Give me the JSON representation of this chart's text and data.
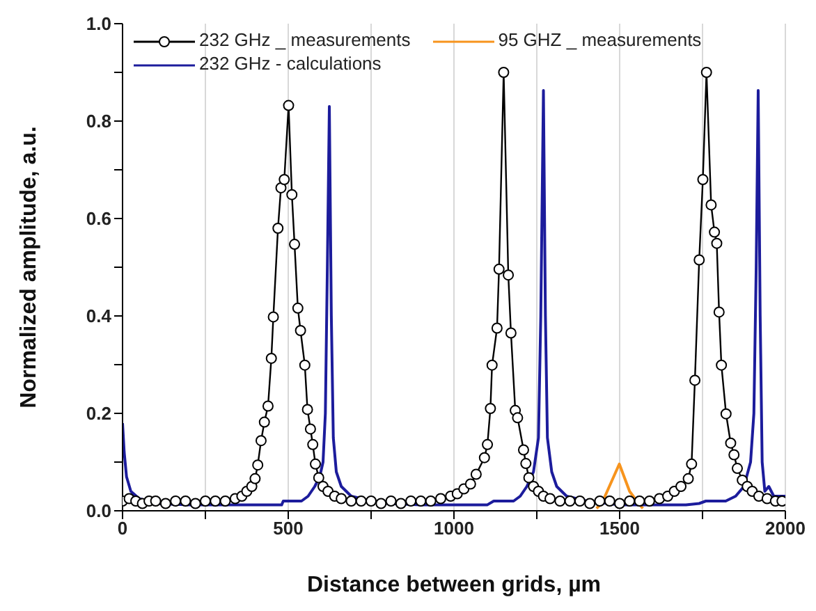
{
  "chart_data": {
    "type": "line",
    "xlabel": "Distance between grids, µm",
    "ylabel": "Normalized amplitude, a.u.",
    "xlim": [
      0,
      2000
    ],
    "xticks": [
      0,
      {
        "value": 250,
        "label": null
      },
      500,
      {
        "value": 750,
        "label": null
      },
      1000,
      {
        "value": 1250,
        "label": null
      },
      1500,
      {
        "value": 1750,
        "label": null
      },
      2000
    ],
    "ylim": [
      0,
      1
    ],
    "yticks": [
      {
        "value": 0,
        "label": "0.0"
      },
      {
        "value": 0.1,
        "label": null
      },
      {
        "value": 0.2,
        "label": "0.2"
      },
      {
        "value": 0.3,
        "label": null
      },
      {
        "value": 0.4,
        "label": "0.4"
      },
      {
        "value": 0.5,
        "label": null
      },
      {
        "value": 0.6,
        "label": "0.6"
      },
      {
        "value": 0.7,
        "label": null
      },
      {
        "value": 0.8,
        "label": "0.8"
      },
      {
        "value": 0.9,
        "label": null
      },
      {
        "value": 1,
        "label": "1.0"
      }
    ],
    "grid": "x",
    "legend": "top left",
    "line_style": "solid",
    "series": [
      {
        "name": "232 GHz _ measurements",
        "color": "#000000",
        "marker": "circle",
        "x": [
          0,
          20,
          40,
          60,
          80,
          100,
          130,
          160,
          190,
          220,
          250,
          280,
          310,
          340,
          360,
          375,
          390,
          400,
          408,
          418,
          428,
          439,
          449,
          455,
          469,
          478,
          488,
          501,
          511,
          519,
          529,
          537,
          550,
          558,
          567,
          574,
          582,
          592,
          605,
          620,
          640,
          660,
          690,
          720,
          750,
          780,
          810,
          840,
          870,
          900,
          930,
          960,
          990,
          1010,
          1030,
          1050,
          1067,
          1092,
          1101,
          1110,
          1115,
          1130,
          1136,
          1150,
          1164,
          1172,
          1185,
          1192,
          1210,
          1217,
          1226,
          1240,
          1255,
          1270,
          1290,
          1320,
          1350,
          1380,
          1410,
          1440,
          1470,
          1500,
          1530,
          1560,
          1590,
          1620,
          1645,
          1665,
          1685,
          1707,
          1717,
          1727,
          1740,
          1751,
          1762,
          1776,
          1786,
          1793,
          1800,
          1807,
          1821,
          1835,
          1845,
          1855,
          1870,
          1885,
          1900,
          1920,
          1945,
          1970,
          1990
        ],
        "values": [
          0.02,
          0.025,
          0.02,
          0.015,
          0.02,
          0.02,
          0.015,
          0.02,
          0.02,
          0.015,
          0.02,
          0.02,
          0.02,
          0.025,
          0.03,
          0.04,
          0.05,
          0.066,
          0.094,
          0.144,
          0.182,
          0.215,
          0.313,
          0.398,
          0.58,
          0.663,
          0.68,
          0.832,
          0.649,
          0.547,
          0.416,
          0.37,
          0.299,
          0.208,
          0.168,
          0.136,
          0.096,
          0.068,
          0.05,
          0.04,
          0.03,
          0.025,
          0.02,
          0.02,
          0.02,
          0.015,
          0.02,
          0.015,
          0.02,
          0.02,
          0.02,
          0.025,
          0.03,
          0.035,
          0.045,
          0.055,
          0.075,
          0.109,
          0.136,
          0.21,
          0.299,
          0.375,
          0.496,
          0.9,
          0.484,
          0.365,
          0.206,
          0.191,
          0.125,
          0.097,
          0.068,
          0.05,
          0.04,
          0.03,
          0.025,
          0.02,
          0.02,
          0.02,
          0.015,
          0.02,
          0.02,
          0.015,
          0.02,
          0.02,
          0.02,
          0.025,
          0.03,
          0.04,
          0.05,
          0.066,
          0.096,
          0.268,
          0.515,
          0.68,
          0.9,
          0.628,
          0.572,
          0.549,
          0.408,
          0.299,
          0.199,
          0.139,
          0.115,
          0.087,
          0.063,
          0.05,
          0.04,
          0.03,
          0.025,
          0.02,
          0.02
        ]
      },
      {
        "name": "95 GHZ _ measurements",
        "color": "#f7941d",
        "x": [
          1430,
          1446,
          1499,
          1530,
          1557,
          1570
        ],
        "values": [
          0.005,
          0.015,
          0.096,
          0.04,
          0.015,
          0.005
        ]
      },
      {
        "name": "232 GHz - calculations",
        "color": "#1c1c9c",
        "x": [
          0,
          5,
          12,
          25,
          50,
          100,
          200,
          300,
          400,
          480,
          485,
          540,
          560,
          580,
          595,
          605,
          612,
          618,
          624,
          630,
          636,
          645,
          660,
          690,
          750,
          800,
          900,
          1000,
          1100,
          1120,
          1180,
          1200,
          1220,
          1240,
          1255,
          1262,
          1270,
          1276,
          1282,
          1295,
          1310,
          1340,
          1400,
          1500,
          1600,
          1700,
          1740,
          1760,
          1820,
          1850,
          1875,
          1895,
          1905,
          1912,
          1918,
          1924,
          1930,
          1938,
          1950,
          1965,
          2000
        ],
        "values": [
          0.18,
          0.12,
          0.07,
          0.04,
          0.025,
          0.015,
          0.012,
          0.012,
          0.012,
          0.012,
          0.02,
          0.02,
          0.03,
          0.05,
          0.07,
          0.1,
          0.2,
          0.5,
          0.83,
          0.4,
          0.15,
          0.08,
          0.05,
          0.03,
          0.02,
          0.015,
          0.012,
          0.012,
          0.012,
          0.02,
          0.02,
          0.03,
          0.05,
          0.08,
          0.15,
          0.4,
          0.863,
          0.4,
          0.15,
          0.08,
          0.05,
          0.03,
          0.02,
          0.012,
          0.012,
          0.012,
          0.015,
          0.02,
          0.02,
          0.03,
          0.05,
          0.1,
          0.2,
          0.5,
          0.863,
          0.4,
          0.1,
          0.04,
          0.05,
          0.03,
          0.03
        ]
      }
    ]
  }
}
